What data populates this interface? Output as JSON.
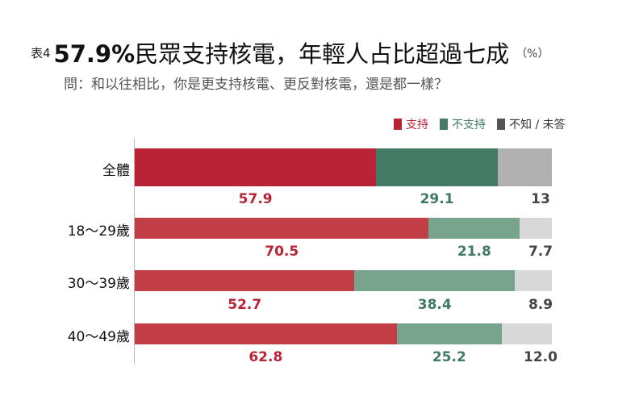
{
  "header": {
    "prefix": "表4",
    "headline_num": "57.9%",
    "headline_text": "民眾支持核電，年輕人占比超過七成",
    "unit": "（%）",
    "question": "問：和以往相比，你是更支持核電、更反對核電，還是都一樣？"
  },
  "legend": [
    {
      "label": "支持",
      "color": "#b82435",
      "text_color": "#b82435"
    },
    {
      "label": "不支持",
      "color": "#437b65",
      "text_color": "#437b65"
    },
    {
      "label": "不知 / 未答",
      "color": "#555555",
      "text_color": "#333333"
    }
  ],
  "colors": {
    "support_total": "#b82435",
    "oppose_total": "#437b65",
    "unknown_total": "#b0b0b0",
    "support_age": "#c23e46",
    "oppose_age": "#78a48e",
    "unknown_age": "#d8d8d8",
    "label_support": "#b82435",
    "label_oppose": "#3f7a62",
    "label_unknown": "#444444"
  },
  "chart_data": {
    "type": "bar",
    "orientation": "horizontal",
    "stacked": true,
    "title": "57.9%民眾支持核電，年輕人占比超過七成",
    "subtitle": "問：和以往相比，你是更支持核電、更反對核電，還是都一樣？",
    "unit": "%",
    "categories": [
      "全體",
      "18～29歲",
      "30～39歲",
      "40～49歲"
    ],
    "series": [
      {
        "name": "支持",
        "values": [
          57.9,
          70.5,
          52.7,
          62.8
        ]
      },
      {
        "name": "不支持",
        "values": [
          29.1,
          21.8,
          38.4,
          25.2
        ]
      },
      {
        "name": "不知 / 未答",
        "values": [
          13,
          7.7,
          8.9,
          12.0
        ]
      }
    ],
    "value_labels": [
      [
        "57.9",
        "29.1",
        "13"
      ],
      [
        "70.5",
        "21.8",
        "7.7"
      ],
      [
        "52.7",
        "38.4",
        "8.9"
      ],
      [
        "62.8",
        "25.2",
        "12.0"
      ]
    ],
    "legend_position": "top-right",
    "grid": false,
    "xlim": [
      0,
      100
    ]
  }
}
